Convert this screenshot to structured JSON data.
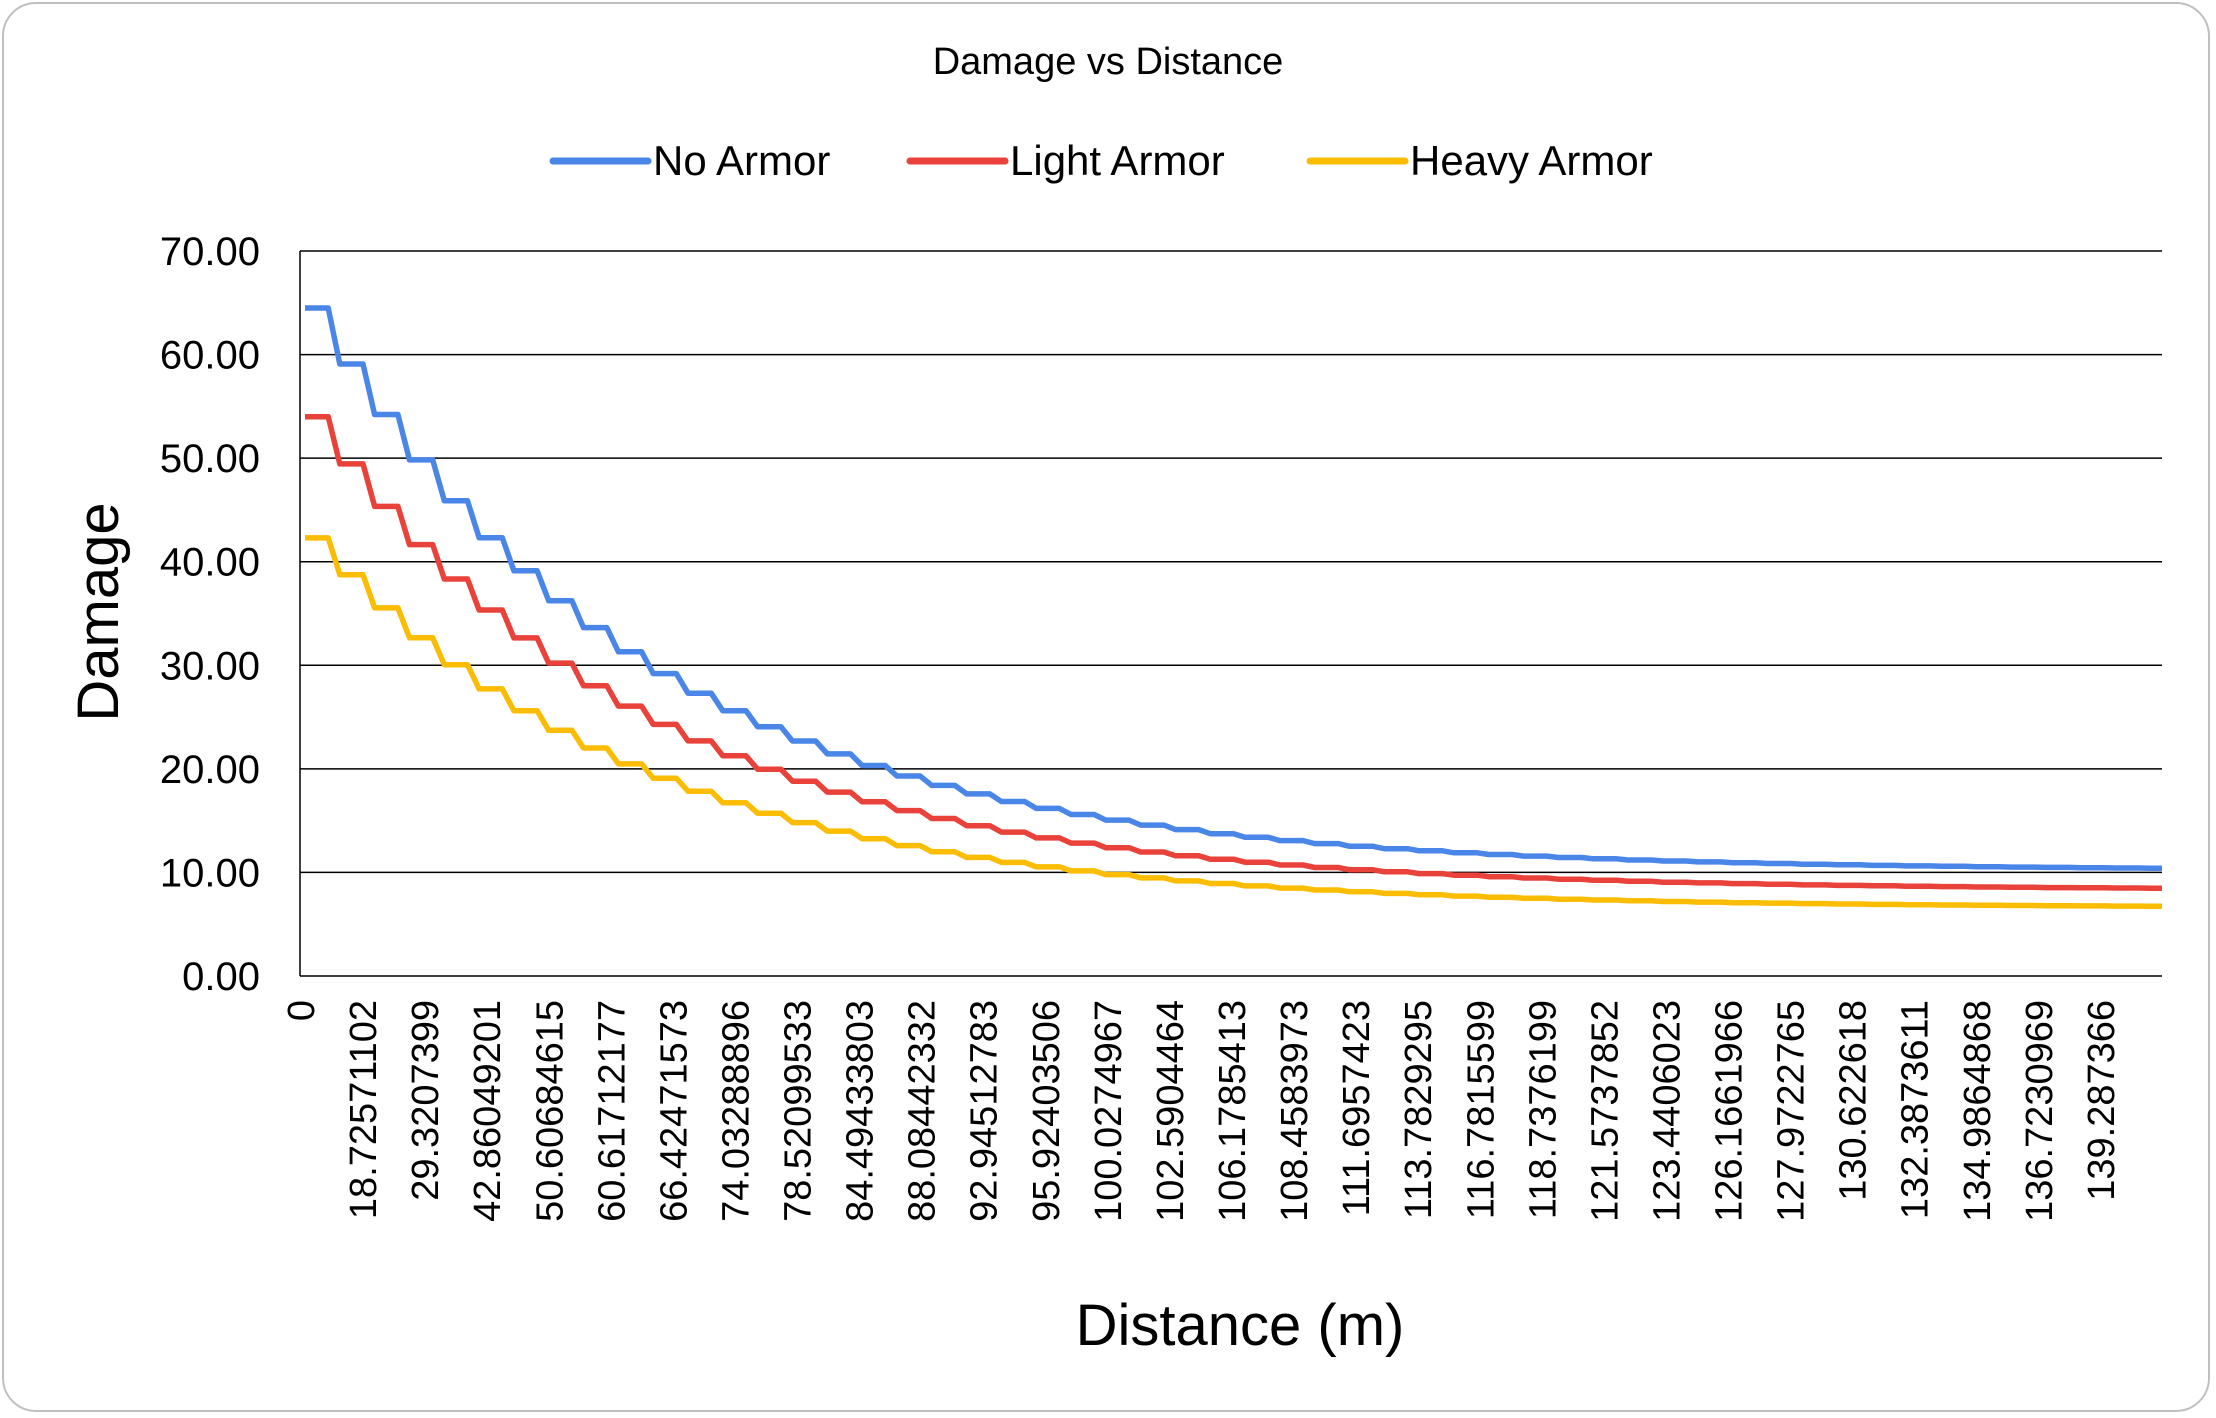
{
  "chart_data": {
    "type": "line",
    "title": "Damage vs Distance",
    "xlabel": "Distance (m)",
    "ylabel": "Damage",
    "ylim": [
      0,
      70
    ],
    "yticks": [
      "0.00",
      "10.00",
      "20.00",
      "30.00",
      "40.00",
      "50.00",
      "60.00",
      "70.00"
    ],
    "x_tick_labels": [
      "0",
      "18.72571102",
      "29.3207399",
      "42.86049201",
      "50.60684615",
      "60.61712177",
      "66.42471573",
      "74.03288896",
      "78.52099533",
      "84.49433803",
      "88.08442332",
      "92.94512783",
      "95.92403506",
      "100.0274967",
      "102.5904464",
      "106.1785413",
      "108.4583973",
      "111.6957423",
      "113.7829295",
      "116.7815599",
      "118.7376199",
      "121.5737852",
      "123.4406023",
      "126.1661966",
      "127.9722765",
      "130.622618",
      "132.3873611",
      "134.9864868",
      "136.7230969",
      "139.287366"
    ],
    "grid": true,
    "legend_position": "top",
    "series": [
      {
        "name": "No Armor",
        "color": "#4a86e8",
        "start": 64.5,
        "end": 10.2
      },
      {
        "name": "Light Armor",
        "color": "#e8423a",
        "start": 54.0,
        "end": 8.3
      },
      {
        "name": "Heavy Armor",
        "color": "#fbbc04",
        "start": 42.3,
        "end": 6.6
      }
    ]
  }
}
